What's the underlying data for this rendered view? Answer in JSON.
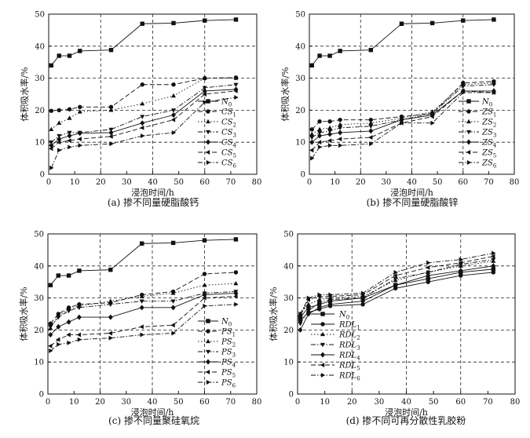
{
  "chart_data": [
    {
      "type": "line",
      "caption": "(a) 掺不同量硬脂酸钙",
      "xlabel": "浸泡时间/h",
      "ylabel": "体积吸水率/%",
      "xlim": [
        0,
        80
      ],
      "ylim": [
        0,
        50
      ],
      "xticks": [
        0,
        10,
        20,
        30,
        40,
        50,
        60,
        70,
        80
      ],
      "yticks": [
        0,
        10,
        20,
        30,
        40,
        50
      ],
      "grid": "dashed",
      "legend_position": "right",
      "x": [
        1,
        4,
        8,
        12,
        24,
        36,
        48,
        60,
        72
      ],
      "series": [
        {
          "name": "N",
          "sub": "0",
          "marker": "square",
          "dash": "solid",
          "values": [
            34,
            37,
            37,
            38.5,
            38.8,
            47,
            47.2,
            48,
            48.3
          ]
        },
        {
          "name": "CS",
          "sub": "1",
          "marker": "circle",
          "dash": "dash",
          "values": [
            19.8,
            20,
            20.3,
            21,
            21,
            28,
            28,
            30,
            30.2
          ]
        },
        {
          "name": "CS",
          "sub": "2",
          "marker": "triangle-up",
          "dash": "dot",
          "values": [
            14,
            16,
            17.5,
            19.5,
            20,
            22,
            24.5,
            30,
            30
          ]
        },
        {
          "name": "CS",
          "sub": "3",
          "marker": "triangle-down",
          "dash": "dashdot",
          "values": [
            10,
            12,
            13,
            13,
            14,
            18,
            20,
            27,
            28
          ]
        },
        {
          "name": "CS",
          "sub": "4",
          "marker": "diamond",
          "dash": "solid",
          "values": [
            9,
            11,
            12,
            12.8,
            13,
            16,
            18.5,
            26,
            26.5
          ]
        },
        {
          "name": "CS",
          "sub": "5",
          "marker": "triangle-left",
          "dash": "dash",
          "values": [
            8,
            10,
            10.5,
            11,
            11.8,
            14.5,
            17,
            25,
            26
          ]
        },
        {
          "name": "CS",
          "sub": "6",
          "marker": "triangle-right",
          "dash": "dashdot",
          "values": [
            2,
            7.5,
            8.5,
            9,
            9.5,
            12,
            13,
            22.5,
            24
          ]
        }
      ]
    },
    {
      "type": "line",
      "caption": "(b) 掺不同量硬脂酸锌",
      "xlabel": "浸泡时间/h",
      "ylabel": "体积吸水率/%",
      "xlim": [
        0,
        80
      ],
      "ylim": [
        0,
        50
      ],
      "xticks": [
        0,
        10,
        20,
        30,
        40,
        50,
        60,
        70,
        80
      ],
      "yticks": [
        0,
        10,
        20,
        30,
        40,
        50
      ],
      "grid": "dashed",
      "legend_position": "right",
      "x": [
        1,
        4,
        8,
        12,
        24,
        36,
        48,
        60,
        72
      ],
      "series": [
        {
          "name": "N",
          "sub": "0",
          "marker": "square",
          "dash": "solid",
          "values": [
            34,
            37,
            37,
            38.5,
            38.8,
            47,
            47.2,
            48,
            48.3
          ]
        },
        {
          "name": "ZS",
          "sub": "1",
          "marker": "circle",
          "dash": "dash",
          "values": [
            14,
            16.5,
            16.5,
            17,
            17,
            18,
            19,
            28.5,
            29
          ]
        },
        {
          "name": "ZS",
          "sub": "2",
          "marker": "triangle-up",
          "dash": "dot",
          "values": [
            12.5,
            14,
            14.5,
            15.5,
            16,
            17.5,
            19.5,
            28,
            28.5
          ]
        },
        {
          "name": "ZS",
          "sub": "3",
          "marker": "triangle-down",
          "dash": "dashdot",
          "values": [
            11.5,
            13,
            13.5,
            14.5,
            15,
            17,
            19,
            27.5,
            28
          ]
        },
        {
          "name": "ZS",
          "sub": "4",
          "marker": "diamond",
          "dash": "solid",
          "values": [
            10,
            12,
            12.5,
            13,
            13.5,
            17,
            18.5,
            26,
            26
          ]
        },
        {
          "name": "ZS",
          "sub": "5",
          "marker": "triangle-left",
          "dash": "dash",
          "values": [
            7.5,
            10,
            10.5,
            11,
            11.5,
            16,
            18,
            26,
            25.5
          ]
        },
        {
          "name": "ZS",
          "sub": "6",
          "marker": "triangle-right",
          "dash": "dashdot",
          "values": [
            5,
            8.5,
            9,
            9,
            9.5,
            16,
            16,
            25.5,
            25.5
          ]
        }
      ]
    },
    {
      "type": "line",
      "caption": "(c) 掺不同量聚硅氧烷",
      "xlabel": "浸泡时间/h",
      "ylabel": "体积吸水率/%",
      "xlim": [
        0,
        80
      ],
      "ylim": [
        0,
        50
      ],
      "xticks": [
        0,
        10,
        20,
        30,
        40,
        50,
        60,
        70,
        80
      ],
      "yticks": [
        0,
        10,
        20,
        30,
        40,
        50
      ],
      "grid": "dashed",
      "legend_position": "right",
      "x": [
        1,
        4,
        8,
        12,
        24,
        36,
        48,
        60,
        72
      ],
      "series": [
        {
          "name": "N",
          "sub": "0",
          "marker": "square",
          "dash": "solid",
          "values": [
            34,
            37,
            37,
            38.5,
            38.8,
            47,
            47.2,
            48,
            48.3
          ]
        },
        {
          "name": "PS",
          "sub": "1",
          "marker": "circle",
          "dash": "dash",
          "values": [
            22,
            25,
            27,
            28,
            28.5,
            31,
            32,
            37.5,
            38
          ]
        },
        {
          "name": "PS",
          "sub": "2",
          "marker": "triangle-up",
          "dash": "dot",
          "values": [
            20.5,
            24.5,
            26.5,
            27.5,
            29,
            30.5,
            31.5,
            34,
            34.5
          ]
        },
        {
          "name": "PS",
          "sub": "3",
          "marker": "triangle-down",
          "dash": "dashdot",
          "values": [
            21,
            24,
            26,
            27,
            28,
            29,
            29,
            31.5,
            32
          ]
        },
        {
          "name": "PS",
          "sub": "4",
          "marker": "diamond",
          "dash": "solid",
          "values": [
            18.5,
            21,
            22.5,
            24,
            24,
            27,
            27,
            31,
            31.5
          ]
        },
        {
          "name": "PS",
          "sub": "5",
          "marker": "triangle-left",
          "dash": "dash",
          "values": [
            15,
            17,
            18.5,
            18.5,
            19,
            21,
            21.5,
            30,
            30.5
          ]
        },
        {
          "name": "PS",
          "sub": "6",
          "marker": "triangle-right",
          "dash": "dashdot",
          "values": [
            13.5,
            15.5,
            16,
            17,
            17.5,
            18.5,
            19,
            27.5,
            28
          ]
        }
      ]
    },
    {
      "type": "line",
      "caption": "(d) 掺不同可再分散性乳胶粉",
      "xlabel": "浸泡时间/h",
      "ylabel": "体积吸水率/%",
      "xlim": [
        0,
        80
      ],
      "ylim": [
        0,
        50
      ],
      "xticks": [
        0,
        10,
        20,
        30,
        40,
        50,
        60,
        70,
        80
      ],
      "yticks": [
        0,
        10,
        20,
        30,
        40,
        50
      ],
      "grid": "dashed",
      "legend_position": "top-left",
      "x": [
        1,
        4,
        8,
        12,
        24,
        36,
        48,
        60,
        72
      ],
      "series": [
        {
          "name": "N",
          "sub": "0",
          "marker": "square",
          "dash": "solid",
          "values": [
            24,
            27,
            28,
            29,
            30,
            34,
            36,
            38,
            39
          ]
        },
        {
          "name": "RDL",
          "sub": "1",
          "marker": "circle",
          "dash": "solid",
          "values": [
            23,
            25.5,
            26.5,
            27.5,
            28,
            33,
            35,
            37,
            38
          ]
        },
        {
          "name": "RDL",
          "sub": "2",
          "marker": "triangle-up",
          "dash": "dot",
          "values": [
            25,
            28,
            29.5,
            30,
            30.5,
            35.5,
            38,
            40,
            41.5
          ]
        },
        {
          "name": "RDL",
          "sub": "3",
          "marker": "triangle-down",
          "dash": "dashdot",
          "values": [
            22,
            26,
            28.5,
            29.5,
            30,
            36,
            38,
            40.5,
            42
          ]
        },
        {
          "name": "RDL",
          "sub": "4",
          "marker": "diamond",
          "dash": "solid",
          "values": [
            20,
            25,
            27,
            28,
            29,
            34,
            37,
            38.5,
            40
          ]
        },
        {
          "name": "RDL",
          "sub": "5",
          "marker": "triangle-left",
          "dash": "dash",
          "values": [
            24.5,
            29.5,
            30.5,
            30.5,
            31,
            37,
            39.5,
            41,
            43
          ]
        },
        {
          "name": "RDL",
          "sub": "6",
          "marker": "triangle-right",
          "dash": "dashdot",
          "values": [
            25,
            30,
            31,
            31,
            31.5,
            38,
            41,
            42,
            44
          ]
        }
      ]
    }
  ]
}
